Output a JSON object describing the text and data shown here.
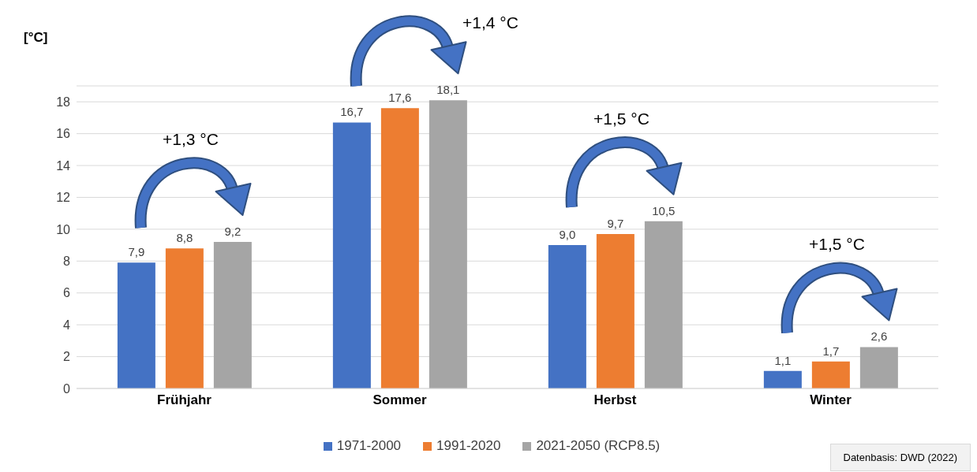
{
  "chart_data": {
    "type": "bar",
    "ylabel": "[°C]",
    "categories": [
      "Frühjahr",
      "Sommer",
      "Herbst",
      "Winter"
    ],
    "series": [
      {
        "name": "1971-2000",
        "color": "#4472c4",
        "values": [
          7.9,
          16.7,
          9.0,
          1.1
        ],
        "value_labels": [
          "7,9",
          "16,7",
          "9,0",
          "1,1"
        ]
      },
      {
        "name": "1991-2020",
        "color": "#ed7d31",
        "values": [
          8.8,
          17.6,
          9.7,
          1.7
        ],
        "value_labels": [
          "8,8",
          "17,6",
          "9,7",
          "1,7"
        ]
      },
      {
        "name": "2021-2050 (RCP8.5)",
        "color": "#a5a5a5",
        "values": [
          9.2,
          18.1,
          10.5,
          2.6
        ],
        "value_labels": [
          "9,2",
          "18,1",
          "10,5",
          "2,6"
        ]
      }
    ],
    "ylim": [
      0,
      19
    ],
    "yticks": [
      0,
      2,
      4,
      6,
      8,
      10,
      12,
      14,
      16,
      18
    ],
    "grid": "y",
    "legend": "bottom",
    "annotations": [
      "+1,3 °C",
      "+1,4 °C",
      "+1,5 °C",
      "+1,5 °C",
      "Datenbasis: DWD (2022)"
    ]
  }
}
